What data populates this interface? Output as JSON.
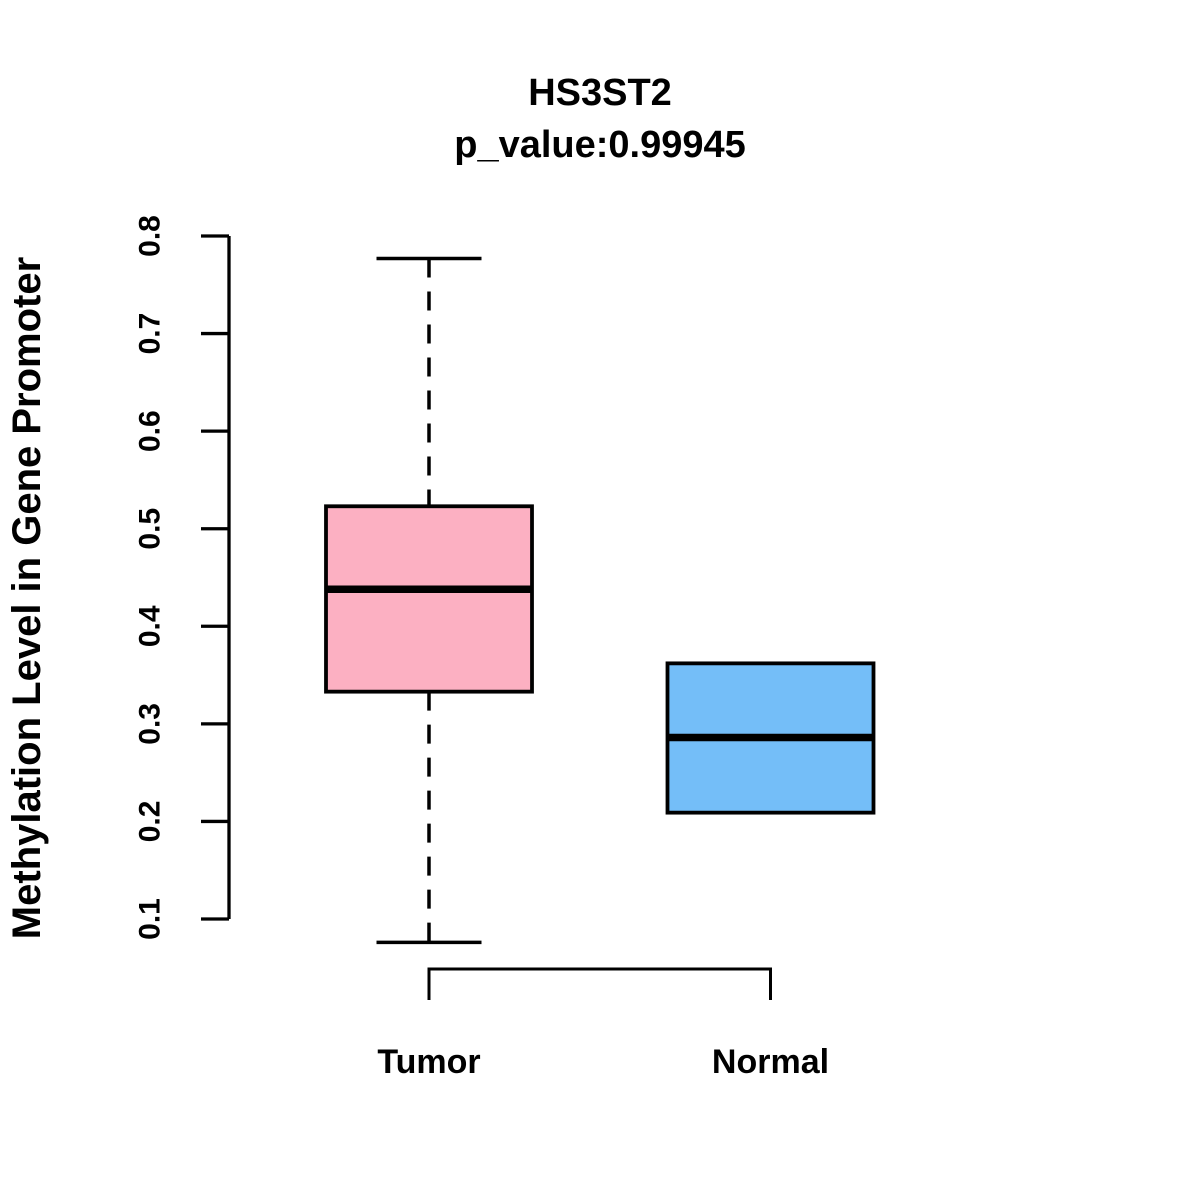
{
  "title": "HS3ST2",
  "subtitle": "p_value:0.99945",
  "p_value": "0.99945",
  "gene": "HS3ST2",
  "colors": {
    "line": "#000000",
    "text": "#000000",
    "background": "#FFFFFF",
    "tumor_fill": "#FCB0C2",
    "normal_fill": "#74BEF8"
  },
  "chart_data": {
    "type": "boxplot",
    "title": "HS3ST2",
    "subtitle": "p_value:0.99945",
    "xlabel": "",
    "ylabel": "Methylation Level in Gene Promoter",
    "categories": [
      "Tumor",
      "Normal"
    ],
    "ylim": [
      0.1,
      0.8
    ],
    "yticks": [
      0.1,
      0.2,
      0.3,
      0.4,
      0.5,
      0.6,
      0.7,
      0.8
    ],
    "ytick_labels": [
      "0.1",
      "0.2",
      "0.3",
      "0.4",
      "0.5",
      "0.6",
      "0.7",
      "0.8"
    ],
    "grid": false,
    "legend_position": "none",
    "whisker_line_style": "dashed",
    "series": [
      {
        "name": "Tumor",
        "fill_color": "#FCB0C2",
        "whisker_low": 0.076,
        "q1": 0.333,
        "median": 0.438,
        "q3": 0.523,
        "whisker_high": 0.777,
        "outliers": []
      },
      {
        "name": "Normal",
        "fill_color": "#74BEF8",
        "whisker_low": 0.209,
        "q1": 0.209,
        "median": 0.286,
        "q3": 0.362,
        "whisker_high": 0.362,
        "outliers": []
      }
    ]
  }
}
